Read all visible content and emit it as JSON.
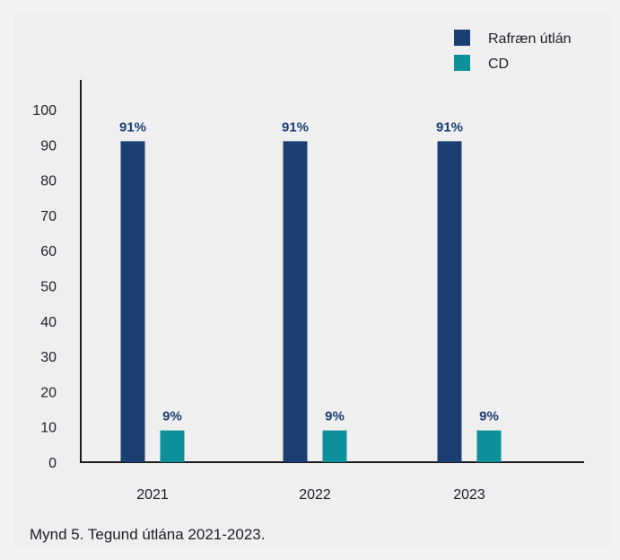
{
  "caption": "Mynd 5. Tegund útlána 2021-2023.",
  "chart_data": {
    "type": "bar",
    "categories": [
      "2021",
      "2022",
      "2023"
    ],
    "series": [
      {
        "name": "Rafræn útlán",
        "values": [
          91,
          91,
          91
        ],
        "labels": [
          "91%",
          "91%",
          "91%"
        ],
        "color": "#1b3f72"
      },
      {
        "name": "CD",
        "values": [
          9,
          9,
          9
        ],
        "labels": [
          "9%",
          "9%",
          "9%"
        ],
        "color": "#0e909a"
      }
    ],
    "yticks": [
      0,
      10,
      20,
      30,
      40,
      50,
      60,
      70,
      80,
      90,
      100
    ],
    "ylim": [
      0,
      100
    ],
    "grid": false,
    "legend_position": "top-right",
    "title": "",
    "xlabel": "",
    "ylabel": ""
  }
}
